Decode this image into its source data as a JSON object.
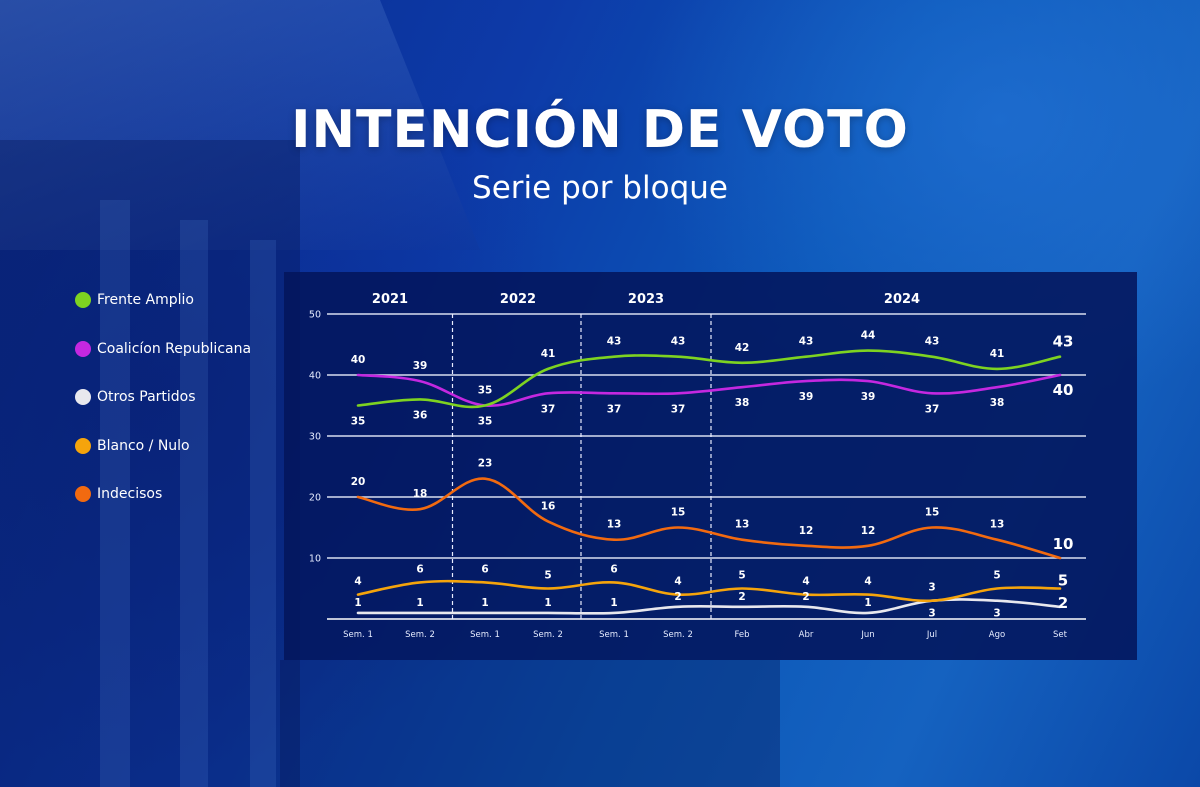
{
  "header": {
    "title": "INTENCIÓN DE VOTO",
    "subtitle": "Serie por bloque"
  },
  "legend": [
    {
      "label": "Frente Amplio",
      "color": "#7ed321"
    },
    {
      "label": "Coalicíon Republicana",
      "color": "#c428e0"
    },
    {
      "label": "Otros Partidos",
      "color": "#e8e8ee"
    },
    {
      "label": "Blanco / Nulo",
      "color": "#f5a40c"
    },
    {
      "label": "Indecisos",
      "color": "#f26a10"
    }
  ],
  "chart_data": {
    "type": "line",
    "title": "INTENCIÓN DE VOTO",
    "subtitle": "Serie por bloque",
    "xlabel": "",
    "ylabel": "",
    "ylim": [
      0,
      50
    ],
    "yticks": [
      10,
      20,
      30,
      40,
      50
    ],
    "grid": true,
    "legend_position": "left",
    "year_groups": [
      {
        "label": "2021",
        "start": 0,
        "end": 1
      },
      {
        "label": "2022",
        "start": 2,
        "end": 3
      },
      {
        "label": "2023",
        "start": 4,
        "end": 5
      },
      {
        "label": "2024",
        "start": 6,
        "end": 11
      }
    ],
    "categories": [
      "Sem. 1",
      "Sem. 2",
      "Sem. 1",
      "Sem. 2",
      "Sem. 1",
      "Sem. 2",
      "Feb",
      "Abr",
      "Jun",
      "Jul",
      "Ago",
      "Set"
    ],
    "series": [
      {
        "name": "Frente Amplio",
        "color": "#7ed321",
        "values": [
          35,
          36,
          35,
          41,
          43,
          43,
          42,
          43,
          44,
          43,
          41,
          43
        ],
        "label_pos": [
          "below",
          "below",
          "above",
          "above",
          "above",
          "above",
          "above",
          "above",
          "above",
          "above",
          "above",
          "above"
        ]
      },
      {
        "name": "Coalicíon Republicana",
        "color": "#c428e0",
        "values": [
          40,
          39,
          35,
          37,
          37,
          37,
          38,
          39,
          39,
          37,
          38,
          40
        ],
        "label_pos": [
          "above",
          "above",
          "below",
          "below",
          "below",
          "below",
          "below",
          "below",
          "below",
          "below",
          "below",
          "below"
        ]
      },
      {
        "name": "Otros Partidos",
        "color": "#e8e8ee",
        "values": [
          1,
          1,
          1,
          1,
          1,
          2,
          2,
          2,
          1,
          3,
          3,
          2
        ],
        "label_pos": [
          "above",
          "above",
          "above",
          "above",
          "above",
          "above",
          "above",
          "above",
          "above",
          "below",
          "below",
          "above"
        ]
      },
      {
        "name": "Blanco / Nulo",
        "color": "#f5a40c",
        "values": [
          4,
          6,
          6,
          5,
          6,
          4,
          5,
          4,
          4,
          3,
          5,
          5
        ],
        "label_pos": [
          "above",
          "above",
          "above",
          "above",
          "above",
          "above",
          "above",
          "above",
          "above",
          "above",
          "above",
          "above"
        ]
      },
      {
        "name": "Indecisos",
        "color": "#f26a10",
        "values": [
          20,
          18,
          23,
          16,
          13,
          15,
          13,
          12,
          12,
          15,
          13,
          10
        ],
        "label_pos": [
          "above",
          "above",
          "above",
          "above",
          "above",
          "above",
          "above",
          "above",
          "above",
          "above",
          "above",
          "above"
        ]
      }
    ]
  }
}
